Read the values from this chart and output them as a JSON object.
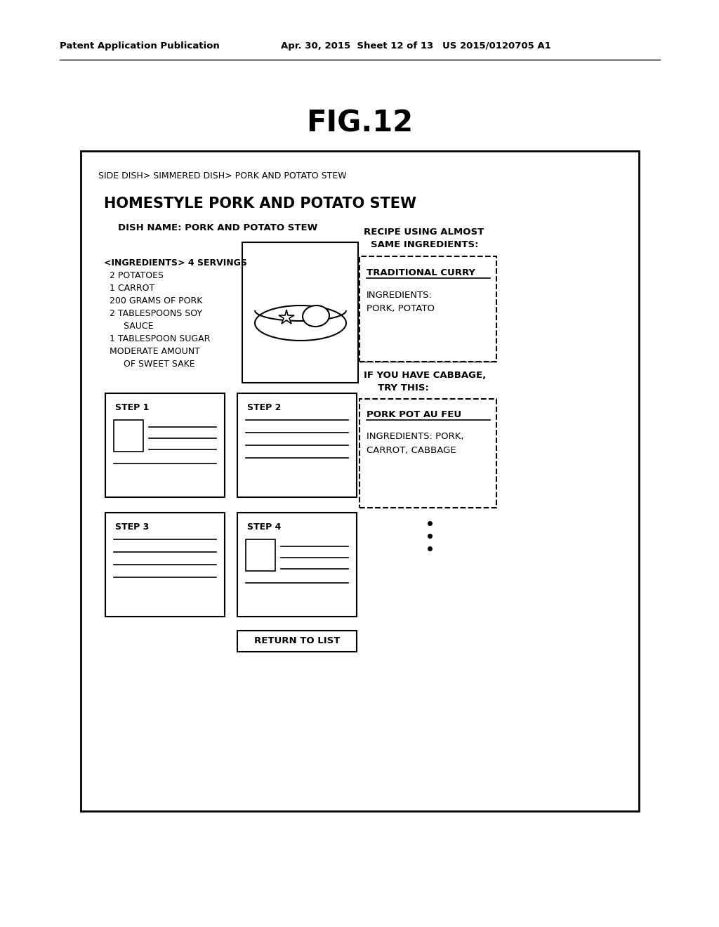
{
  "bg_color": "#ffffff",
  "header_left": "Patent Application Publication",
  "header_mid": "Apr. 30, 2015  Sheet 12 of 13",
  "header_right": "US 2015/0120705 A1",
  "fig_title": "FIG.12",
  "breadcrumb": "SIDE DISH> SIMMERED DISH> PORK AND POTATO STEW",
  "dish_title": "HOMESTYLE PORK AND POTATO STEW",
  "dish_name_label": "DISH NAME: PORK AND POTATO STEW",
  "ingredients_lines": [
    "<INGREDIENTS> 4 SERVINGS",
    "  2 POTATOES",
    "  1 CARROT",
    "  200 GRAMS OF PORK",
    "  2 TABLESPOONS SOY",
    "       SAUCE",
    "  1 TABLESPOON SUGAR",
    "  MODERATE AMOUNT",
    "       OF SWEET SAKE"
  ],
  "recipe_label_line1": "RECIPE USING ALMOST",
  "recipe_label_line2": "SAME INGREDIENTS:",
  "recipe1_title": "TRADITIONAL CURRY",
  "recipe1_ing_line1": "INGREDIENTS:",
  "recipe1_ing_line2": "PORK, POTATO",
  "cabbage_label_line1": "IF YOU HAVE CABBAGE,",
  "cabbage_label_line2": "TRY THIS:",
  "recipe2_title": "PORK POT AU FEU",
  "recipe2_ing_line1": "INGREDIENTS: PORK,",
  "recipe2_ing_line2": "CARROT, CABBAGE",
  "step_labels": [
    "STEP 1",
    "STEP 2",
    "STEP 3",
    "STEP 4"
  ],
  "return_btn": "RETURN TO LIST"
}
